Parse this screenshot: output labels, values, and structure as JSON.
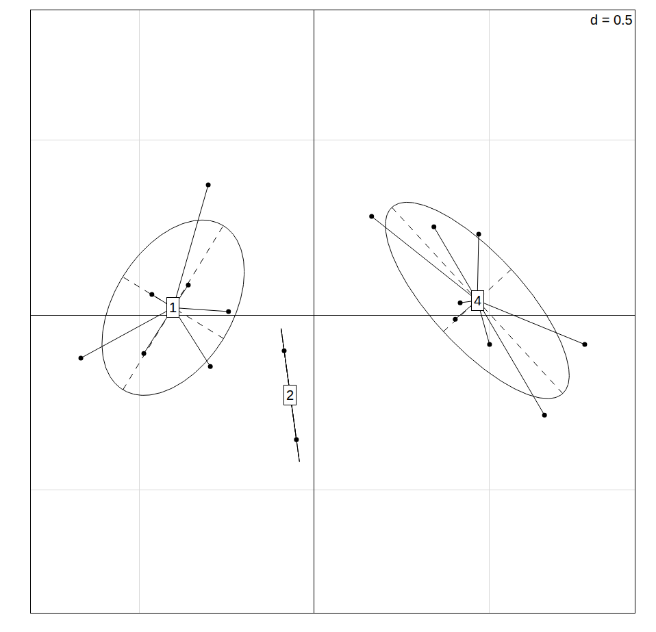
{
  "chart_data": {
    "type": "scatter",
    "annotation": "d = 0.5",
    "groups": [
      {
        "name": "1",
        "x": [
          -0.303,
          -0.464,
          -0.36,
          -0.245,
          -0.667,
          -0.487,
          -0.297
        ],
        "y": [
          0.372,
          0.059,
          0.086,
          0.01,
          -0.123,
          -0.11,
          -0.147
        ]
      },
      {
        "name": "2",
        "x": [
          -0.086,
          -0.051
        ],
        "y": [
          -0.102,
          -0.356
        ]
      },
      {
        "name": "4",
        "x": [
          0.164,
          0.342,
          0.47,
          0.417,
          0.403,
          0.501,
          0.773,
          0.658
        ],
        "y": [
          0.282,
          0.252,
          0.231,
          0.035,
          -0.012,
          -0.084,
          -0.084,
          -0.286
        ]
      }
    ],
    "xlim": [
      -0.81,
      0.916
    ],
    "ylim": [
      -0.851,
      0.871
    ],
    "xticks": [
      -0.5,
      0,
      0.5
    ],
    "yticks": [
      -0.5,
      0,
      0.5
    ],
    "grid": true,
    "tick_labels": false,
    "color": "#000000"
  }
}
